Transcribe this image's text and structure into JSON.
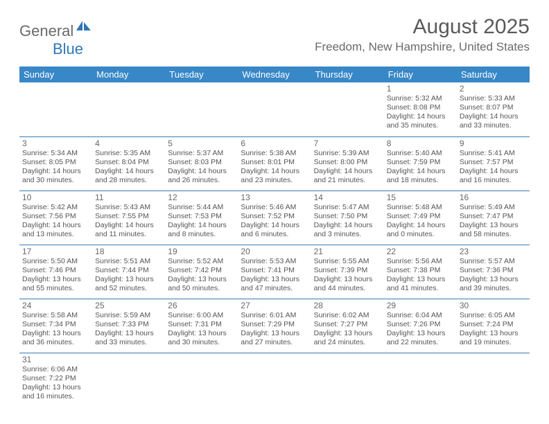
{
  "brand": {
    "general": "General",
    "blue": "Blue"
  },
  "title": "August 2025",
  "location": "Freedom, New Hampshire, United States",
  "colors": {
    "header_bg": "#3887c7",
    "header_text": "#ffffff",
    "border": "#3879b2",
    "text": "#555555",
    "title_text": "#5a5a5a",
    "logo_blue": "#2f77b6",
    "logo_gray": "#6a6a6a"
  },
  "day_headers": [
    "Sunday",
    "Monday",
    "Tuesday",
    "Wednesday",
    "Thursday",
    "Friday",
    "Saturday"
  ],
  "weeks": [
    [
      null,
      null,
      null,
      null,
      null,
      {
        "n": "1",
        "sr": "5:32 AM",
        "ss": "8:08 PM",
        "dl": "14 hours and 35 minutes."
      },
      {
        "n": "2",
        "sr": "5:33 AM",
        "ss": "8:07 PM",
        "dl": "14 hours and 33 minutes."
      }
    ],
    [
      {
        "n": "3",
        "sr": "5:34 AM",
        "ss": "8:05 PM",
        "dl": "14 hours and 30 minutes."
      },
      {
        "n": "4",
        "sr": "5:35 AM",
        "ss": "8:04 PM",
        "dl": "14 hours and 28 minutes."
      },
      {
        "n": "5",
        "sr": "5:37 AM",
        "ss": "8:03 PM",
        "dl": "14 hours and 26 minutes."
      },
      {
        "n": "6",
        "sr": "5:38 AM",
        "ss": "8:01 PM",
        "dl": "14 hours and 23 minutes."
      },
      {
        "n": "7",
        "sr": "5:39 AM",
        "ss": "8:00 PM",
        "dl": "14 hours and 21 minutes."
      },
      {
        "n": "8",
        "sr": "5:40 AM",
        "ss": "7:59 PM",
        "dl": "14 hours and 18 minutes."
      },
      {
        "n": "9",
        "sr": "5:41 AM",
        "ss": "7:57 PM",
        "dl": "14 hours and 16 minutes."
      }
    ],
    [
      {
        "n": "10",
        "sr": "5:42 AM",
        "ss": "7:56 PM",
        "dl": "14 hours and 13 minutes."
      },
      {
        "n": "11",
        "sr": "5:43 AM",
        "ss": "7:55 PM",
        "dl": "14 hours and 11 minutes."
      },
      {
        "n": "12",
        "sr": "5:44 AM",
        "ss": "7:53 PM",
        "dl": "14 hours and 8 minutes."
      },
      {
        "n": "13",
        "sr": "5:46 AM",
        "ss": "7:52 PM",
        "dl": "14 hours and 6 minutes."
      },
      {
        "n": "14",
        "sr": "5:47 AM",
        "ss": "7:50 PM",
        "dl": "14 hours and 3 minutes."
      },
      {
        "n": "15",
        "sr": "5:48 AM",
        "ss": "7:49 PM",
        "dl": "14 hours and 0 minutes."
      },
      {
        "n": "16",
        "sr": "5:49 AM",
        "ss": "7:47 PM",
        "dl": "13 hours and 58 minutes."
      }
    ],
    [
      {
        "n": "17",
        "sr": "5:50 AM",
        "ss": "7:46 PM",
        "dl": "13 hours and 55 minutes."
      },
      {
        "n": "18",
        "sr": "5:51 AM",
        "ss": "7:44 PM",
        "dl": "13 hours and 52 minutes."
      },
      {
        "n": "19",
        "sr": "5:52 AM",
        "ss": "7:42 PM",
        "dl": "13 hours and 50 minutes."
      },
      {
        "n": "20",
        "sr": "5:53 AM",
        "ss": "7:41 PM",
        "dl": "13 hours and 47 minutes."
      },
      {
        "n": "21",
        "sr": "5:55 AM",
        "ss": "7:39 PM",
        "dl": "13 hours and 44 minutes."
      },
      {
        "n": "22",
        "sr": "5:56 AM",
        "ss": "7:38 PM",
        "dl": "13 hours and 41 minutes."
      },
      {
        "n": "23",
        "sr": "5:57 AM",
        "ss": "7:36 PM",
        "dl": "13 hours and 39 minutes."
      }
    ],
    [
      {
        "n": "24",
        "sr": "5:58 AM",
        "ss": "7:34 PM",
        "dl": "13 hours and 36 minutes."
      },
      {
        "n": "25",
        "sr": "5:59 AM",
        "ss": "7:33 PM",
        "dl": "13 hours and 33 minutes."
      },
      {
        "n": "26",
        "sr": "6:00 AM",
        "ss": "7:31 PM",
        "dl": "13 hours and 30 minutes."
      },
      {
        "n": "27",
        "sr": "6:01 AM",
        "ss": "7:29 PM",
        "dl": "13 hours and 27 minutes."
      },
      {
        "n": "28",
        "sr": "6:02 AM",
        "ss": "7:27 PM",
        "dl": "13 hours and 24 minutes."
      },
      {
        "n": "29",
        "sr": "6:04 AM",
        "ss": "7:26 PM",
        "dl": "13 hours and 22 minutes."
      },
      {
        "n": "30",
        "sr": "6:05 AM",
        "ss": "7:24 PM",
        "dl": "13 hours and 19 minutes."
      }
    ],
    [
      {
        "n": "31",
        "sr": "6:06 AM",
        "ss": "7:22 PM",
        "dl": "13 hours and 16 minutes."
      },
      null,
      null,
      null,
      null,
      null,
      null
    ]
  ],
  "labels": {
    "sunrise": "Sunrise: ",
    "sunset": "Sunset: ",
    "daylight": "Daylight: "
  }
}
